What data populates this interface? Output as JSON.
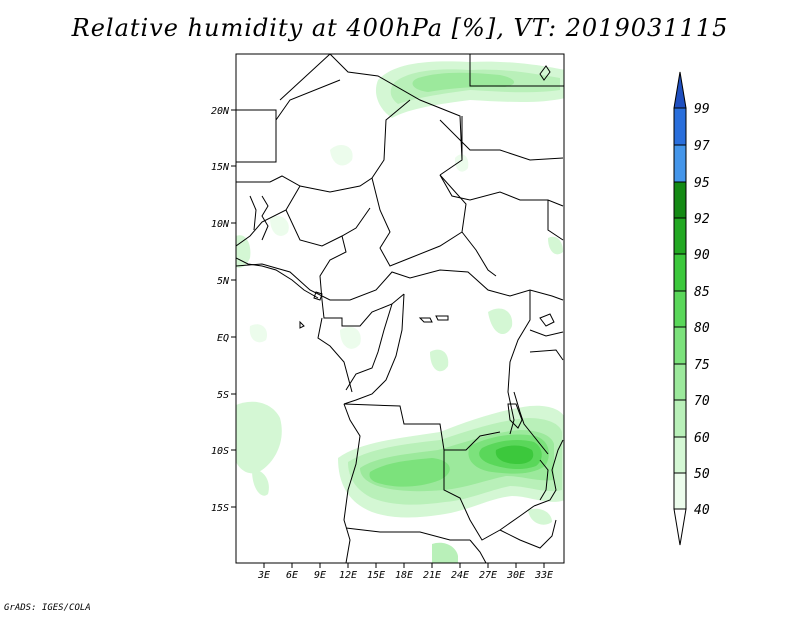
{
  "title": "Relative humidity at 400hPa [%], VT: 2019031115",
  "credit": "GrADS: IGES/COLA",
  "map": {
    "lat_ticks": [
      "20N",
      "15N",
      "10N",
      "5N",
      "EQ",
      "5S",
      "10S",
      "15S"
    ],
    "lon_ticks": [
      "3E",
      "6E",
      "9E",
      "12E",
      "15E",
      "18E",
      "21E",
      "24E",
      "27E",
      "30E",
      "33E"
    ]
  },
  "colorbar": {
    "labels": [
      "99",
      "97",
      "95",
      "92",
      "90",
      "85",
      "80",
      "75",
      "70",
      "60",
      "50",
      "40"
    ],
    "colors": [
      "#1f4fbf",
      "#2a6fdc",
      "#4596ea",
      "#148a14",
      "#22a822",
      "#3cc83c",
      "#5ad75a",
      "#7ce27c",
      "#9ce99c",
      "#b9f0b9",
      "#d4f7d4",
      "#ecfcec"
    ]
  },
  "chart_data": {
    "type": "heatmap",
    "title": "Relative humidity at 400hPa [%], VT: 2019031115",
    "variable": "Relative humidity at 400hPa",
    "units": "%",
    "valid_time": "2019031115",
    "x_axis": [
      "3E",
      "6E",
      "9E",
      "12E",
      "15E",
      "18E",
      "21E",
      "24E",
      "27E",
      "30E",
      "33E"
    ],
    "y_axis": [
      "20N",
      "15N",
      "10N",
      "5N",
      "EQ",
      "5S",
      "10S",
      "15S"
    ],
    "levels": [
      40,
      50,
      60,
      70,
      75,
      80,
      85,
      90,
      92,
      95,
      97,
      99
    ]
  }
}
